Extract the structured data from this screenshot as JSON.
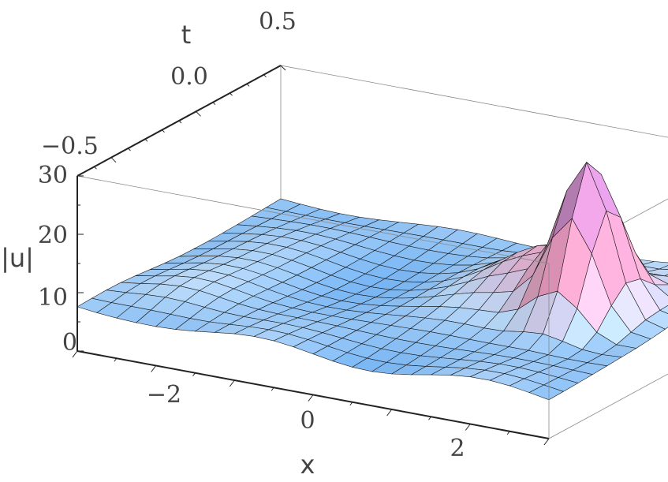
{
  "chart_data": {
    "type": "surface3d",
    "title": "",
    "axes": {
      "x": {
        "label": "x",
        "range": [
          -3,
          3
        ],
        "ticks": [
          -2,
          0,
          2
        ],
        "tick_labels": [
          "−2",
          "0",
          "2"
        ]
      },
      "t": {
        "label": "t",
        "range": [
          -0.7,
          0.5
        ],
        "ticks": [
          -0.5,
          0.0,
          0.5
        ],
        "tick_labels": [
          "−0.5",
          "0.0",
          "0.5"
        ]
      },
      "z": {
        "label": "|u|",
        "range": [
          0,
          30
        ],
        "ticks": [
          0,
          10,
          20,
          30
        ],
        "tick_labels": [
          "0",
          "10",
          "20",
          "30"
        ]
      }
    },
    "surface": {
      "grid_x": 24,
      "grid_t": 14,
      "background_level": 7,
      "peaks": [
        {
          "x": 2.0,
          "t": 0.0,
          "height": 29
        },
        {
          "x": 1.2,
          "t": 0.15,
          "height": 10
        },
        {
          "x": -2.2,
          "t": -0.45,
          "height": 5
        },
        {
          "x": 2.7,
          "t": 0.35,
          "height": 6
        }
      ]
    },
    "colors": {
      "low": "#5aa5f0",
      "mid": "#ffffff",
      "high": "#f5a0c0",
      "accent": "#9a7ae0"
    }
  }
}
